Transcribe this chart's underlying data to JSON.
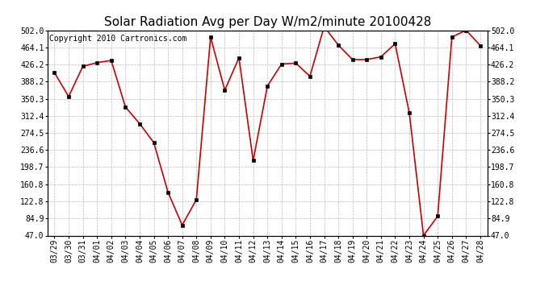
{
  "title": "Solar Radiation Avg per Day W/m2/minute 20100428",
  "copyright": "Copyright 2010 Cartronics.com",
  "dates": [
    "03/29",
    "03/30",
    "03/31",
    "04/01",
    "04/02",
    "04/03",
    "04/04",
    "04/05",
    "04/06",
    "04/07",
    "04/08",
    "04/09",
    "04/10",
    "04/11",
    "04/12",
    "04/13",
    "04/14",
    "04/15",
    "04/16",
    "04/17",
    "04/18",
    "04/19",
    "04/20",
    "04/21",
    "04/22",
    "04/23",
    "04/24",
    "04/25",
    "04/26",
    "04/27",
    "04/28"
  ],
  "values": [
    408,
    355,
    422,
    430,
    435,
    332,
    295,
    253,
    143,
    70,
    127,
    487,
    369,
    441,
    213,
    378,
    427,
    429,
    400,
    510,
    469,
    437,
    437,
    443,
    472,
    319,
    47,
    90,
    487,
    502,
    468
  ],
  "line_color": "#cc0000",
  "marker_color": "#000000",
  "bg_color": "#ffffff",
  "plot_bg_color": "#ffffff",
  "grid_color": "#bbbbbb",
  "yticks": [
    47.0,
    84.9,
    122.8,
    160.8,
    198.7,
    236.6,
    274.5,
    312.4,
    350.3,
    388.2,
    426.2,
    464.1,
    502.0
  ],
  "ymin": 47.0,
  "ymax": 502.0,
  "title_fontsize": 11,
  "tick_fontsize": 7,
  "copyright_fontsize": 7
}
